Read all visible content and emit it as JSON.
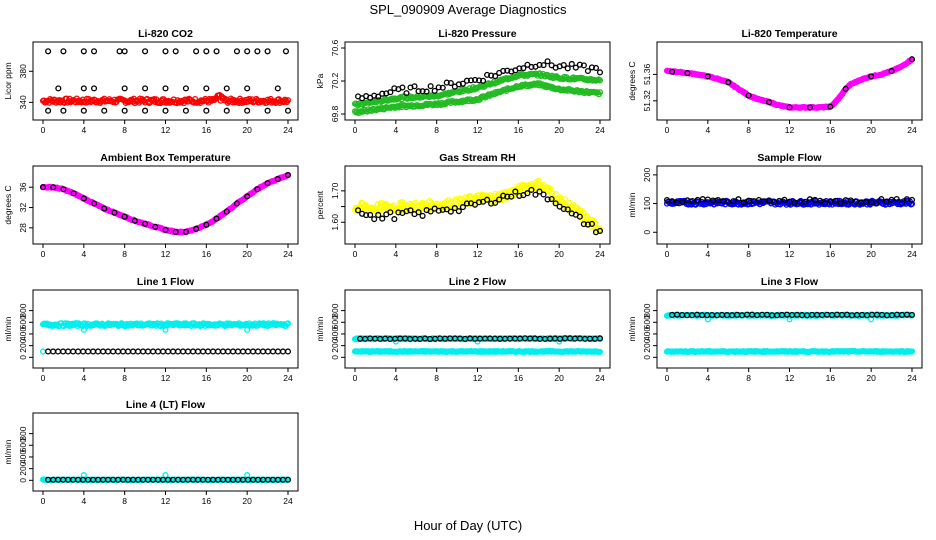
{
  "page": {
    "title": "SPL_090909  Average Diagnostics",
    "xlabel": "Hour of Day (UTC)"
  },
  "chart_data": [
    {
      "type": "scatter",
      "title": "Li-820 CO2",
      "ylabel": "Licor ppm",
      "xlim": [
        0,
        24
      ],
      "ylim": [
        325,
        410
      ],
      "yticks": [
        340,
        380
      ],
      "xticks": [
        0,
        4,
        8,
        12,
        16,
        20,
        24
      ],
      "series": [
        {
          "color": "#ff0000",
          "x_range": [
            0,
            24
          ],
          "y": 342,
          "noise": 3,
          "bump_x": 17.3,
          "bump_y": 350
        },
        {
          "color": "#000000",
          "outliers_high": [
            0.5,
            2,
            4,
            5,
            7.5,
            8,
            10,
            12,
            13,
            15,
            16,
            17,
            19,
            20,
            21,
            22,
            23.8
          ],
          "outliers_mid": [
            1.5,
            4,
            5,
            8,
            10,
            12,
            14,
            16,
            18,
            20,
            23
          ],
          "outliers_low": [
            0.5,
            2,
            4,
            6,
            8,
            10,
            12,
            14,
            16,
            18,
            20,
            22,
            24
          ]
        }
      ]
    },
    {
      "type": "scatter",
      "title": "Li-820 Pressure",
      "ylabel": "kPa",
      "xlim": [
        0,
        24
      ],
      "ylim": [
        69.8,
        70.6
      ],
      "yticks": [
        69.8,
        70.2,
        70.6
      ],
      "xticks": [
        0,
        4,
        8,
        12,
        16,
        20,
        24
      ],
      "series": [
        {
          "color": "#22bb22",
          "x": [
            0,
            4,
            8,
            12,
            16,
            18,
            20,
            24
          ],
          "y_lower": [
            69.82,
            69.89,
            69.92,
            69.98,
            70.14,
            70.16,
            70.1,
            70.05
          ],
          "y_upper": [
            69.91,
            69.99,
            70.02,
            70.12,
            70.27,
            70.28,
            70.24,
            70.21
          ]
        },
        {
          "color": "#000000",
          "x": [
            0,
            4,
            8,
            12,
            16,
            18,
            20,
            24
          ],
          "y": [
            69.98,
            70.08,
            70.12,
            70.22,
            70.36,
            70.42,
            70.38,
            70.34
          ]
        }
      ]
    },
    {
      "type": "scatter",
      "title": "Li-820 Temperature",
      "ylabel": "degrees C",
      "xlim": [
        0,
        24
      ],
      "ylim": [
        51.3,
        51.4
      ],
      "yticks": [
        51.32,
        51.36
      ],
      "xticks": [
        0,
        4,
        8,
        12,
        16,
        20,
        24
      ],
      "series": [
        {
          "color": "#ff00ff",
          "x": [
            0,
            1,
            2,
            3,
            4,
            5,
            6,
            7,
            8,
            9,
            10,
            11,
            12,
            13,
            14,
            15,
            16,
            16.5,
            17,
            17.5,
            18,
            19,
            20,
            21,
            22,
            23,
            24
          ],
          "y": [
            51.365,
            51.364,
            51.362,
            51.36,
            51.357,
            51.353,
            51.348,
            51.338,
            51.328,
            51.322,
            51.318,
            51.313,
            51.31,
            51.31,
            51.31,
            51.31,
            51.311,
            51.318,
            51.327,
            51.338,
            51.345,
            51.352,
            51.357,
            51.36,
            51.365,
            51.372,
            51.383
          ]
        },
        {
          "color": "#000000",
          "x": [
            0.5,
            2,
            4,
            6,
            8,
            10,
            12,
            14,
            16,
            17.5,
            20,
            22,
            24
          ],
          "y": [
            51.364,
            51.362,
            51.357,
            51.348,
            51.328,
            51.318,
            51.31,
            51.31,
            51.311,
            51.338,
            51.357,
            51.365,
            51.383
          ]
        }
      ]
    },
    {
      "type": "scatter",
      "title": "Ambient Box Temperature",
      "ylabel": "degrees C",
      "xlim": [
        0,
        24
      ],
      "ylim": [
        26,
        39
      ],
      "yticks": [
        28,
        32,
        36
      ],
      "xticks": [
        0,
        4,
        8,
        12,
        16,
        20,
        24
      ],
      "series": [
        {
          "color": "#ff00ff",
          "x": [
            0,
            1,
            2,
            3,
            4,
            5,
            6,
            7,
            8,
            9,
            10,
            11,
            12,
            13,
            14,
            15,
            16,
            17,
            18,
            19,
            20,
            21,
            22,
            23,
            24
          ],
          "y": [
            36,
            36,
            35.6,
            34.8,
            33.8,
            32.8,
            31.8,
            31,
            30.2,
            29.4,
            28.8,
            28.2,
            27.6,
            27.2,
            27.2,
            27.8,
            28.6,
            29.8,
            31.2,
            32.8,
            34.2,
            35.6,
            36.8,
            37.6,
            38.4
          ]
        },
        {
          "color": "#000000",
          "x": [
            0,
            1,
            2,
            3,
            4,
            5,
            6,
            7,
            8,
            9,
            10,
            11,
            12,
            13,
            14,
            15,
            16,
            17,
            18,
            19,
            20,
            21,
            22,
            23,
            24
          ],
          "y": [
            36,
            36,
            35.6,
            34.8,
            33.8,
            32.8,
            31.8,
            31,
            30.2,
            29.4,
            28.8,
            28.2,
            27.6,
            27.2,
            27.2,
            27.8,
            28.6,
            29.8,
            31.2,
            32.8,
            34.2,
            35.6,
            36.8,
            37.6,
            38.4
          ]
        }
      ]
    },
    {
      "type": "scatter",
      "title": "Gas Stream RH",
      "ylabel": "percent",
      "xlim": [
        0,
        24
      ],
      "ylim": [
        1.55,
        1.76
      ],
      "yticks": [
        1.6,
        1.65,
        1.7
      ],
      "ytick_labels": [
        "1.60",
        "",
        "1.70"
      ],
      "xticks": [
        0,
        4,
        8,
        12,
        16,
        20,
        24
      ],
      "series": [
        {
          "color": "#ffff00",
          "x": [
            0,
            2,
            4,
            6,
            8,
            10,
            12,
            14,
            16,
            17,
            18,
            19,
            20,
            21,
            22,
            23,
            24
          ],
          "y": [
            1.65,
            1.645,
            1.65,
            1.65,
            1.655,
            1.66,
            1.675,
            1.68,
            1.7,
            1.715,
            1.72,
            1.7,
            1.67,
            1.65,
            1.63,
            1.6,
            1.58
          ]
        },
        {
          "color": "#000000",
          "x": [
            0,
            1,
            2,
            3,
            4,
            5,
            6,
            7,
            8,
            9,
            10,
            11,
            12,
            13,
            14,
            15,
            16,
            17,
            18,
            19,
            20,
            21,
            22,
            23,
            24
          ],
          "y": [
            1.65,
            1.63,
            1.61,
            1.625,
            1.62,
            1.63,
            1.625,
            1.63,
            1.64,
            1.645,
            1.64,
            1.65,
            1.66,
            1.665,
            1.675,
            1.685,
            1.69,
            1.7,
            1.69,
            1.68,
            1.66,
            1.63,
            1.61,
            1.59,
            1.57
          ]
        }
      ]
    },
    {
      "type": "scatter",
      "title": "Sample Flow",
      "ylabel": "ml/min",
      "xlim": [
        0,
        24
      ],
      "ylim": [
        -20,
        210
      ],
      "yticks": [
        0,
        100,
        200
      ],
      "xticks": [
        0,
        4,
        8,
        12,
        16,
        20,
        24
      ],
      "series": [
        {
          "color": "#0000ee",
          "x_range": [
            0,
            24
          ],
          "y": 103,
          "noise": 7
        },
        {
          "color": "#000000",
          "x_range": [
            0,
            24
          ],
          "y": 108,
          "noise": 8
        }
      ]
    },
    {
      "type": "scatter",
      "title": "Line 1 Flow",
      "ylabel": "ml/min",
      "xlim": [
        0,
        24
      ],
      "ylim": [
        -80,
        1050
      ],
      "yticks": [
        0,
        200,
        400,
        600,
        800
      ],
      "xticks": [
        0,
        4,
        8,
        12,
        16,
        20,
        24
      ],
      "series": [
        {
          "color": "#00eeee",
          "x_range": [
            0,
            24
          ],
          "y": 560,
          "noise": 25,
          "dips": [
            4,
            12,
            20
          ],
          "dip_y": 470
        },
        {
          "color": "#00eeee",
          "x": [
            0
          ],
          "y": [
            100
          ]
        },
        {
          "color": "#000000",
          "x_range": [
            0.5,
            24
          ],
          "y": 100,
          "noise": 0
        }
      ]
    },
    {
      "type": "scatter",
      "title": "Line 2 Flow",
      "ylabel": "ml/min",
      "xlim": [
        0,
        24
      ],
      "ylim": [
        -80,
        1050
      ],
      "yticks": [
        0,
        200,
        400,
        600,
        800
      ],
      "xticks": [
        0,
        4,
        8,
        12,
        16,
        20,
        24
      ],
      "series": [
        {
          "color": "#00eeee",
          "x_range": [
            0,
            24
          ],
          "y": 100,
          "noise": 8
        },
        {
          "color": "#00eeee",
          "x_range": [
            0,
            24
          ],
          "y": 320,
          "noise": 10,
          "dips": [
            4,
            12,
            20
          ],
          "dip_y": 270
        },
        {
          "color": "#000000",
          "x_range": [
            0.5,
            24
          ],
          "y": 320,
          "noise": 6
        }
      ]
    },
    {
      "type": "scatter",
      "title": "Line 3 Flow",
      "ylabel": "ml/min",
      "xlim": [
        0,
        24
      ],
      "ylim": [
        -80,
        1050
      ],
      "yticks": [
        0,
        200,
        400,
        600,
        800
      ],
      "xticks": [
        0,
        4,
        8,
        12,
        16,
        20,
        24
      ],
      "series": [
        {
          "color": "#00eeee",
          "x_range": [
            0,
            24
          ],
          "y": 100,
          "noise": 8
        },
        {
          "color": "#00eeee",
          "x_range": [
            0,
            24
          ],
          "y": 720,
          "noise": 10,
          "dips": [
            4,
            12,
            20
          ],
          "dip_y": 650
        },
        {
          "color": "#000000",
          "x_range": [
            0.5,
            24
          ],
          "y": 725,
          "noise": 6
        }
      ]
    },
    {
      "type": "scatter",
      "title": "Line 4 (LT) Flow",
      "ylabel": "ml/min",
      "xlim": [
        0,
        24
      ],
      "ylim": [
        -80,
        1050
      ],
      "yticks": [
        0,
        200,
        400,
        600,
        800
      ],
      "xticks": [
        0,
        4,
        8,
        12,
        16,
        20,
        24
      ],
      "series": [
        {
          "color": "#00eeee",
          "x_range": [
            0,
            24
          ],
          "y": 10,
          "noise": 4,
          "spikes": [
            4,
            12,
            20
          ],
          "spike_y": 90
        },
        {
          "color": "#000000",
          "x_range": [
            0.5,
            24
          ],
          "y": 10,
          "noise": 0
        }
      ]
    }
  ]
}
